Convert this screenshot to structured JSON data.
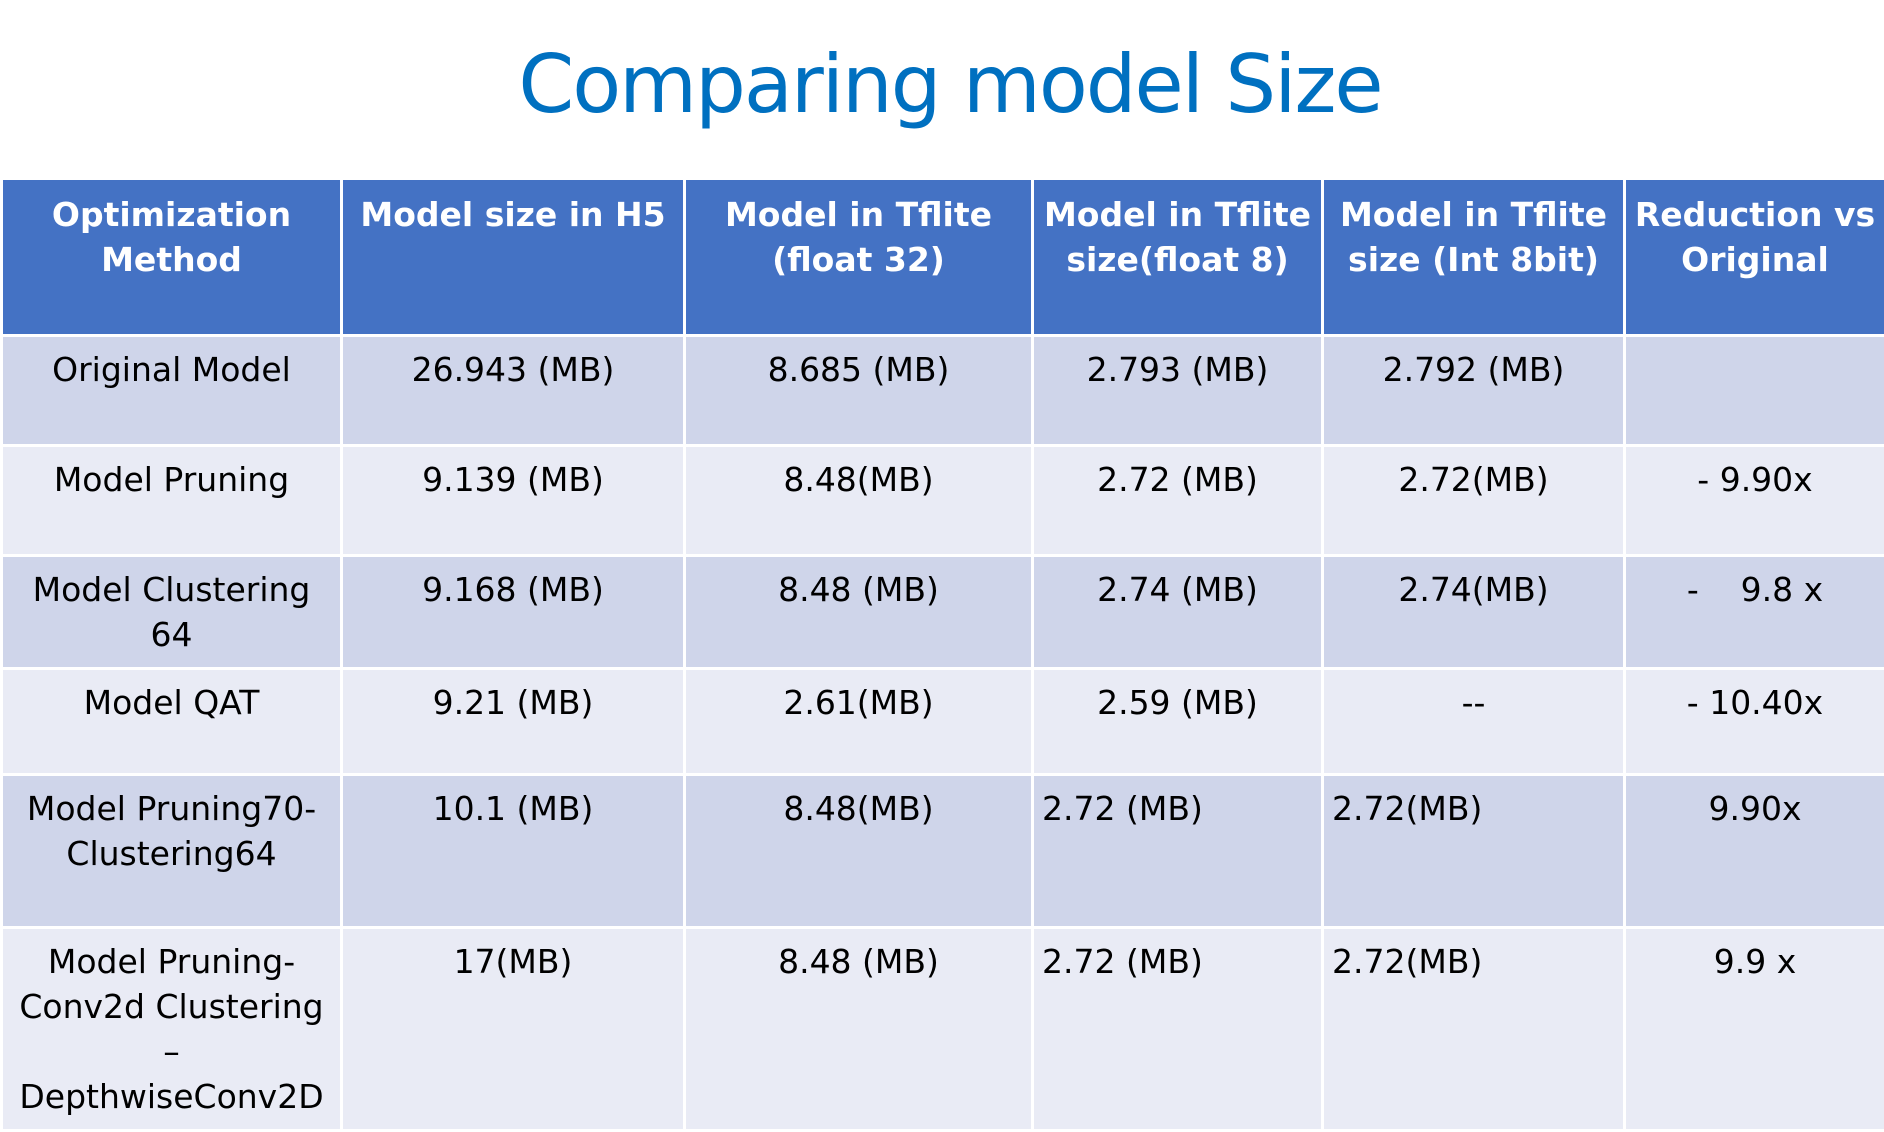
{
  "title": "Comparing model Size",
  "table": {
    "headers": [
      "Optimization\nMethod",
      "Model size in H5",
      "Model in Tflite\n(float 32)",
      "Model in Tflite\nsize(float 8)",
      "Model in Tflite\nsize (Int 8bit)",
      "Reduction vs\nOriginal"
    ],
    "rows": [
      [
        "Original Model",
        "26.943 (MB)",
        "8.685 (MB)",
        "2.793 (MB)",
        "2.792 (MB)",
        ""
      ],
      [
        "Model Pruning",
        "9.139 (MB)",
        "8.48(MB)",
        "2.72 (MB)",
        "2.72(MB)",
        "- 9.90x"
      ],
      [
        "Model Clustering 64",
        "9.168 (MB)",
        "8.48 (MB)",
        "2.74 (MB)",
        "2.74(MB)",
        "-    9.8 x"
      ],
      [
        "Model QAT",
        "9.21 (MB)",
        "2.61(MB)",
        "2.59 (MB)",
        "--",
        "- 10.40x"
      ],
      [
        "Model Pruning70-\nClustering64",
        "10.1 (MB)",
        "8.48(MB)",
        "2.72 (MB)",
        "2.72(MB)",
        "9.90x"
      ],
      [
        "Model Pruning-\nConv2d Clustering –\nDepthwiseConv2D",
        "17(MB)",
        "8.48 (MB)",
        "2.72 (MB)",
        "2.72(MB)",
        "9.9 x"
      ]
    ]
  },
  "colors": {
    "title": "#0070c0",
    "header_bg": "#4472c4",
    "row_odd_bg": "#cfd5ea",
    "row_even_bg": "#e9ebf5"
  }
}
